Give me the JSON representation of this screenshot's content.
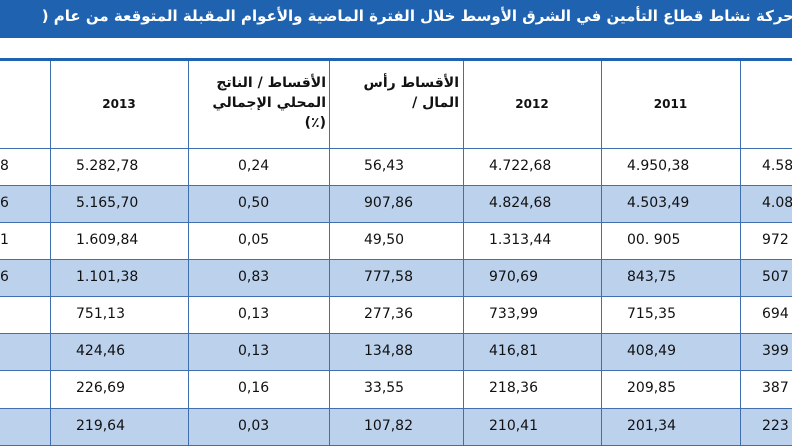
{
  "title": "حركة نشاط قطاع التأمين في الشرق الأوسط خلال الفترة الماضية والأعوام المقبلة المتوقعة من عام (",
  "headers": {
    "col_left": "",
    "y2013": "2013",
    "premiums_gdp": "الأقساط / الناتج المحلي الإجمالي (٪)",
    "premiums_capita": "الأقساط رأس المال /",
    "y2012": "2012",
    "y2011": "2011",
    "col_right": ""
  },
  "rows": [
    {
      "left": "8",
      "y2013": "5.282,78",
      "gdp": "0,24",
      "capita": "56,43",
      "y2012": "4.722,68",
      "y2011": "4.950,38",
      "right": "4.58"
    },
    {
      "left": "6",
      "y2013": "5.165,70",
      "gdp": "0,50",
      "capita": "907,86",
      "y2012": "4.824,68",
      "y2011": "4.503,49",
      "right": "4.08"
    },
    {
      "left": "1",
      "y2013": "1.609,84",
      "gdp": "0,05",
      "capita": "49,50",
      "y2012": "1.313,44",
      "y2011": "00. 905",
      "right": "972"
    },
    {
      "left": "6",
      "y2013": "1.101,38",
      "gdp": "0,83",
      "capita": "777,58",
      "y2012": "970,69",
      "y2011": "843,75",
      "right": "507"
    },
    {
      "left": "",
      "y2013": "751,13",
      "gdp": "0,13",
      "capita": "277,36",
      "y2012": "733,99",
      "y2011": "715,35",
      "right": "694"
    },
    {
      "left": "",
      "y2013": "424,46",
      "gdp": "0,13",
      "capita": "134,88",
      "y2012": "416,81",
      "y2011": "408,49",
      "right": "399"
    },
    {
      "left": "",
      "y2013": "226,69",
      "gdp": "0,16",
      "capita": "33,55",
      "y2012": "218,36",
      "y2011": "209,85",
      "right": "387"
    },
    {
      "left": "",
      "y2013": "219,64",
      "gdp": "0,03",
      "capita": "107,82",
      "y2012": "210,41",
      "y2011": "201,34",
      "right": "223"
    }
  ]
}
